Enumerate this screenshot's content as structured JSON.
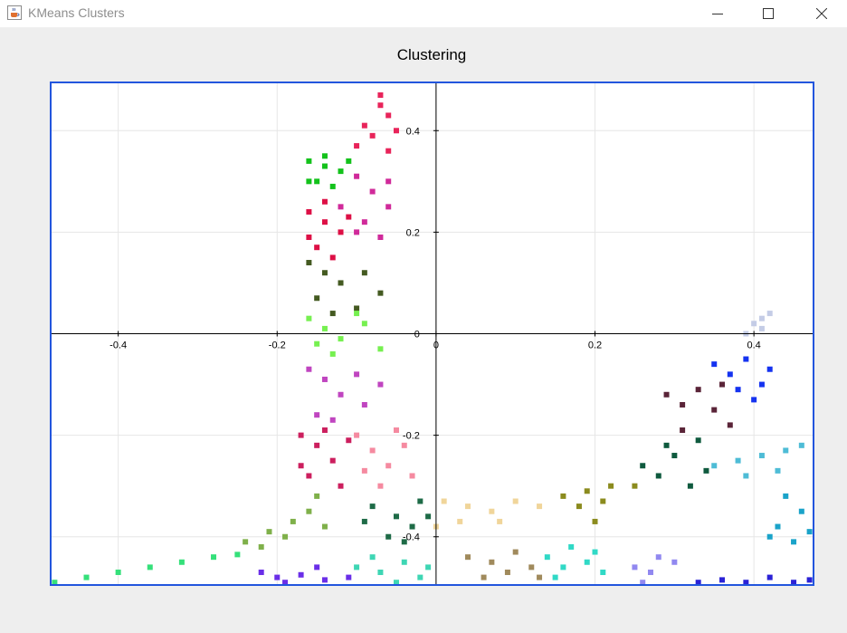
{
  "window": {
    "title": "KMeans Clusters",
    "icon": "java-cup-icon",
    "controls": [
      "minimize-icon",
      "maximize-icon",
      "close-icon"
    ]
  },
  "chart_data": {
    "type": "scatter",
    "title": "Clustering",
    "xlabel": "",
    "ylabel": "",
    "xlim": [
      -0.485,
      0.475
    ],
    "ylim": [
      -0.495,
      0.495
    ],
    "x_ticks": [
      -0.4,
      -0.2,
      0,
      0.2,
      0.4
    ],
    "y_ticks": [
      -0.4,
      -0.2,
      0,
      0.2,
      0.4
    ],
    "x_tick_labels": [
      "-0.4",
      "-0.2",
      "0",
      "0.2",
      "0.4"
    ],
    "y_tick_labels": [
      "-0.4",
      "-0.2",
      "0",
      "0.2",
      "0.4"
    ],
    "grid": true,
    "legend": "none",
    "frame_color": "#2255dd",
    "series": [
      {
        "color": "#e8245a",
        "points": [
          [
            -0.07,
            0.47
          ],
          [
            -0.06,
            0.43
          ],
          [
            -0.08,
            0.39
          ],
          [
            -0.1,
            0.37
          ],
          [
            -0.06,
            0.36
          ],
          [
            -0.09,
            0.41
          ],
          [
            -0.07,
            0.45
          ],
          [
            -0.05,
            0.4
          ]
        ]
      },
      {
        "color": "#13c21b",
        "points": [
          [
            -0.16,
            0.34
          ],
          [
            -0.14,
            0.33
          ],
          [
            -0.12,
            0.32
          ],
          [
            -0.15,
            0.3
          ],
          [
            -0.13,
            0.29
          ],
          [
            -0.16,
            0.3
          ],
          [
            -0.11,
            0.34
          ],
          [
            -0.14,
            0.35
          ]
        ]
      },
      {
        "color": "#d02a9a",
        "points": [
          [
            -0.1,
            0.31
          ],
          [
            -0.08,
            0.28
          ],
          [
            -0.06,
            0.25
          ],
          [
            -0.09,
            0.22
          ],
          [
            -0.07,
            0.19
          ],
          [
            -0.12,
            0.25
          ],
          [
            -0.06,
            0.3
          ],
          [
            -0.1,
            0.2
          ]
        ]
      },
      {
        "color": "#dd0f45",
        "points": [
          [
            -0.16,
            0.24
          ],
          [
            -0.14,
            0.22
          ],
          [
            -0.12,
            0.2
          ],
          [
            -0.15,
            0.17
          ],
          [
            -0.13,
            0.15
          ],
          [
            -0.16,
            0.19
          ],
          [
            -0.11,
            0.23
          ],
          [
            -0.14,
            0.26
          ]
        ]
      },
      {
        "color": "#445a21",
        "points": [
          [
            -0.16,
            0.14
          ],
          [
            -0.14,
            0.12
          ],
          [
            -0.12,
            0.1
          ],
          [
            -0.09,
            0.12
          ],
          [
            -0.07,
            0.08
          ],
          [
            -0.15,
            0.07
          ],
          [
            -0.1,
            0.05
          ],
          [
            -0.13,
            0.04
          ]
        ]
      },
      {
        "color": "#76f050",
        "points": [
          [
            -0.16,
            0.03
          ],
          [
            -0.14,
            0.01
          ],
          [
            -0.12,
            -0.01
          ],
          [
            -0.09,
            0.02
          ],
          [
            -0.07,
            -0.03
          ],
          [
            -0.15,
            -0.02
          ],
          [
            -0.1,
            0.04
          ],
          [
            -0.13,
            -0.04
          ]
        ]
      },
      {
        "color": "#c045c0",
        "points": [
          [
            -0.16,
            -0.07
          ],
          [
            -0.14,
            -0.09
          ],
          [
            -0.12,
            -0.12
          ],
          [
            -0.09,
            -0.14
          ],
          [
            -0.07,
            -0.1
          ],
          [
            -0.15,
            -0.16
          ],
          [
            -0.1,
            -0.08
          ],
          [
            -0.13,
            -0.17
          ]
        ]
      },
      {
        "color": "#cc1f5e",
        "points": [
          [
            -0.17,
            -0.2
          ],
          [
            -0.15,
            -0.22
          ],
          [
            -0.13,
            -0.25
          ],
          [
            -0.11,
            -0.21
          ],
          [
            -0.16,
            -0.28
          ],
          [
            -0.14,
            -0.19
          ],
          [
            -0.12,
            -0.3
          ],
          [
            -0.17,
            -0.26
          ]
        ]
      },
      {
        "color": "#f58aa0",
        "points": [
          [
            -0.1,
            -0.2
          ],
          [
            -0.08,
            -0.23
          ],
          [
            -0.06,
            -0.26
          ],
          [
            -0.04,
            -0.22
          ],
          [
            -0.07,
            -0.3
          ],
          [
            -0.05,
            -0.19
          ],
          [
            -0.03,
            -0.28
          ],
          [
            -0.09,
            -0.27
          ]
        ]
      },
      {
        "color": "#7fb04a",
        "points": [
          [
            -0.24,
            -0.41
          ],
          [
            -0.21,
            -0.39
          ],
          [
            -0.18,
            -0.37
          ],
          [
            -0.16,
            -0.35
          ],
          [
            -0.14,
            -0.38
          ],
          [
            -0.19,
            -0.4
          ],
          [
            -0.15,
            -0.32
          ],
          [
            -0.22,
            -0.42
          ]
        ]
      },
      {
        "color": "#35e07a",
        "points": [
          [
            -0.48,
            -0.49
          ],
          [
            -0.44,
            -0.48
          ],
          [
            -0.4,
            -0.47
          ],
          [
            -0.36,
            -0.46
          ],
          [
            -0.32,
            -0.45
          ],
          [
            -0.28,
            -0.44
          ],
          [
            -0.25,
            -0.435
          ]
        ]
      },
      {
        "color": "#6a2ee8",
        "points": [
          [
            -0.22,
            -0.47
          ],
          [
            -0.2,
            -0.48
          ],
          [
            -0.17,
            -0.475
          ],
          [
            -0.14,
            -0.485
          ],
          [
            -0.11,
            -0.48
          ],
          [
            -0.15,
            -0.46
          ],
          [
            -0.19,
            -0.49
          ]
        ]
      },
      {
        "color": "#1e6b47",
        "points": [
          [
            -0.08,
            -0.34
          ],
          [
            -0.05,
            -0.36
          ],
          [
            -0.03,
            -0.38
          ],
          [
            -0.06,
            -0.4
          ],
          [
            -0.02,
            -0.33
          ],
          [
            -0.09,
            -0.37
          ],
          [
            -0.04,
            -0.41
          ],
          [
            -0.01,
            -0.36
          ]
        ]
      },
      {
        "color": "#3ed6b4",
        "points": [
          [
            -0.1,
            -0.46
          ],
          [
            -0.07,
            -0.47
          ],
          [
            -0.04,
            -0.45
          ],
          [
            -0.02,
            -0.48
          ],
          [
            -0.08,
            -0.44
          ],
          [
            -0.05,
            -0.49
          ],
          [
            -0.01,
            -0.46
          ]
        ]
      },
      {
        "color": "#f0d59a",
        "points": [
          [
            0.01,
            -0.33
          ],
          [
            0.04,
            -0.34
          ],
          [
            0.07,
            -0.35
          ],
          [
            0.1,
            -0.33
          ],
          [
            0.13,
            -0.34
          ],
          [
            0.03,
            -0.37
          ],
          [
            0.08,
            -0.37
          ],
          [
            0.0,
            -0.38
          ]
        ]
      },
      {
        "color": "#a08a5c",
        "points": [
          [
            0.04,
            -0.44
          ],
          [
            0.07,
            -0.45
          ],
          [
            0.09,
            -0.47
          ],
          [
            0.12,
            -0.46
          ],
          [
            0.06,
            -0.48
          ],
          [
            0.1,
            -0.43
          ],
          [
            0.13,
            -0.48
          ]
        ]
      },
      {
        "color": "#30d9c6",
        "points": [
          [
            0.14,
            -0.44
          ],
          [
            0.16,
            -0.46
          ],
          [
            0.19,
            -0.45
          ],
          [
            0.21,
            -0.47
          ],
          [
            0.17,
            -0.42
          ],
          [
            0.15,
            -0.48
          ],
          [
            0.2,
            -0.43
          ]
        ]
      },
      {
        "color": "#8b8b1e",
        "points": [
          [
            0.16,
            -0.32
          ],
          [
            0.19,
            -0.31
          ],
          [
            0.22,
            -0.3
          ],
          [
            0.25,
            -0.3
          ],
          [
            0.18,
            -0.34
          ],
          [
            0.21,
            -0.33
          ],
          [
            0.2,
            -0.37
          ]
        ]
      },
      {
        "color": "#0f5a3e",
        "points": [
          [
            0.26,
            -0.26
          ],
          [
            0.28,
            -0.28
          ],
          [
            0.3,
            -0.24
          ],
          [
            0.32,
            -0.3
          ],
          [
            0.34,
            -0.27
          ],
          [
            0.29,
            -0.22
          ],
          [
            0.33,
            -0.21
          ]
        ]
      },
      {
        "color": "#5a2438",
        "points": [
          [
            0.29,
            -0.12
          ],
          [
            0.31,
            -0.14
          ],
          [
            0.33,
            -0.11
          ],
          [
            0.35,
            -0.15
          ],
          [
            0.37,
            -0.18
          ],
          [
            0.31,
            -0.19
          ],
          [
            0.36,
            -0.1
          ]
        ]
      },
      {
        "color": "#1533f0",
        "points": [
          [
            0.35,
            -0.06
          ],
          [
            0.37,
            -0.08
          ],
          [
            0.39,
            -0.05
          ],
          [
            0.41,
            -0.1
          ],
          [
            0.4,
            -0.13
          ],
          [
            0.38,
            -0.11
          ],
          [
            0.42,
            -0.07
          ]
        ]
      },
      {
        "color": "#4ebcd6",
        "points": [
          [
            0.35,
            -0.26
          ],
          [
            0.38,
            -0.25
          ],
          [
            0.41,
            -0.24
          ],
          [
            0.44,
            -0.23
          ],
          [
            0.46,
            -0.22
          ],
          [
            0.39,
            -0.28
          ],
          [
            0.43,
            -0.27
          ]
        ]
      },
      {
        "color": "#1aa3c9",
        "points": [
          [
            0.43,
            -0.38
          ],
          [
            0.45,
            -0.41
          ],
          [
            0.46,
            -0.35
          ],
          [
            0.44,
            -0.32
          ],
          [
            0.47,
            -0.39
          ],
          [
            0.42,
            -0.4
          ]
        ]
      },
      {
        "color": "#9188f0",
        "points": [
          [
            0.25,
            -0.46
          ],
          [
            0.27,
            -0.47
          ],
          [
            0.28,
            -0.44
          ],
          [
            0.26,
            -0.49
          ],
          [
            0.3,
            -0.45
          ]
        ]
      },
      {
        "color": "#2b22d6",
        "points": [
          [
            0.33,
            -0.49
          ],
          [
            0.36,
            -0.485
          ],
          [
            0.39,
            -0.49
          ],
          [
            0.42,
            -0.48
          ],
          [
            0.45,
            -0.49
          ],
          [
            0.47,
            -0.485
          ]
        ]
      },
      {
        "color": "#c4cce6",
        "points": [
          [
            0.4,
            0.02
          ],
          [
            0.41,
            0.03
          ],
          [
            0.42,
            0.04
          ],
          [
            0.39,
            0.0
          ],
          [
            0.41,
            0.01
          ]
        ]
      }
    ]
  }
}
